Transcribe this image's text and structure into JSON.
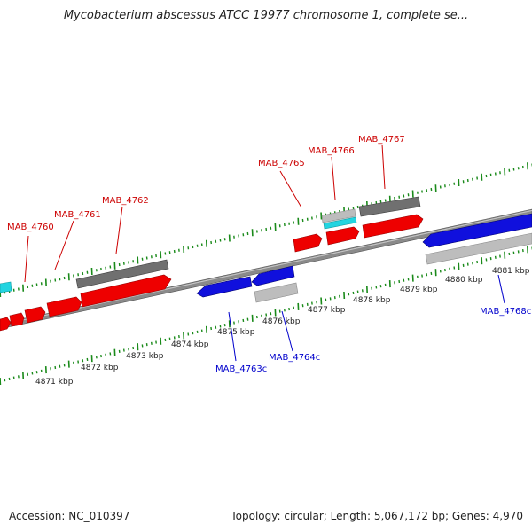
{
  "title": "Mycobacterium abscessus ATCC 19977 chromosome 1, complete se...",
  "footer": {
    "accession": "Accession: NC_010397",
    "summary": "Topology: circular; Length: 5,067,172 bp; Genes: 4,970"
  },
  "colors": {
    "forward_gene": "#ee0000",
    "reverse_gene": "#1010dd",
    "dark_feature": "#707070",
    "light_feature": "#bdbdbd",
    "cyan_feature": "#22d4e0",
    "backbone": "#808080",
    "tick": "#1a8a1a",
    "forward_label": "#cc0000",
    "reverse_label": "#0000cc"
  },
  "kbp_labels": [
    "4871 kbp",
    "4872 kbp",
    "4873 kbp",
    "4874 kbp",
    "4875 kbp",
    "4876 kbp",
    "4877 kbp",
    "4878 kbp",
    "4879 kbp",
    "4880 kbp",
    "4881 kbp"
  ],
  "gene_labels": {
    "forward": [
      "MAB_4760",
      "MAB_4761",
      "MAB_4762",
      "MAB_4765",
      "MAB_4766",
      "MAB_4767"
    ],
    "reverse": [
      "MAB_4763c",
      "MAB_4764c",
      "MAB_4768c"
    ]
  }
}
